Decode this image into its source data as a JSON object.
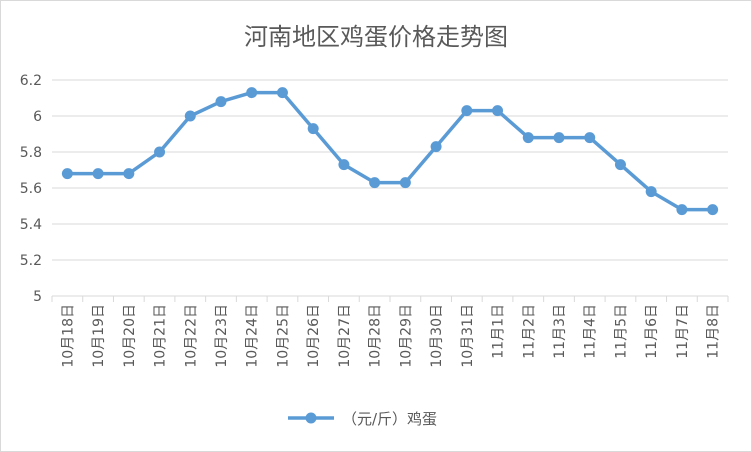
{
  "chart_data": {
    "type": "line",
    "title": "河南地区鸡蛋价格走势图",
    "categories": [
      "10月18日",
      "10月19日",
      "10月20日",
      "10月21日",
      "10月22日",
      "10月23日",
      "10月24日",
      "10月25日",
      "10月26日",
      "10月27日",
      "10月28日",
      "10月29日",
      "10月30日",
      "10月31日",
      "11月1日",
      "11月2日",
      "11月3日",
      "11月4日",
      "11月5日",
      "11月6日",
      "11月7日",
      "11月8日"
    ],
    "series": [
      {
        "name": "（元/斤）鸡蛋",
        "values": [
          5.68,
          5.68,
          5.68,
          5.8,
          6.0,
          6.08,
          6.13,
          6.13,
          5.93,
          5.73,
          5.63,
          5.63,
          5.83,
          6.03,
          6.03,
          5.88,
          5.88,
          5.88,
          5.73,
          5.58,
          5.48,
          5.48
        ]
      }
    ],
    "ylim": [
      5,
      6.2
    ],
    "yticks": [
      "5",
      "5.2",
      "5.4",
      "5.6",
      "5.8",
      "6",
      "6.2"
    ],
    "grid": true,
    "legend_position": "bottom",
    "colors": {
      "series": "#5b9bd5",
      "grid": "#d9d9d9",
      "text": "#595959",
      "border": "#d9d9d9"
    }
  }
}
